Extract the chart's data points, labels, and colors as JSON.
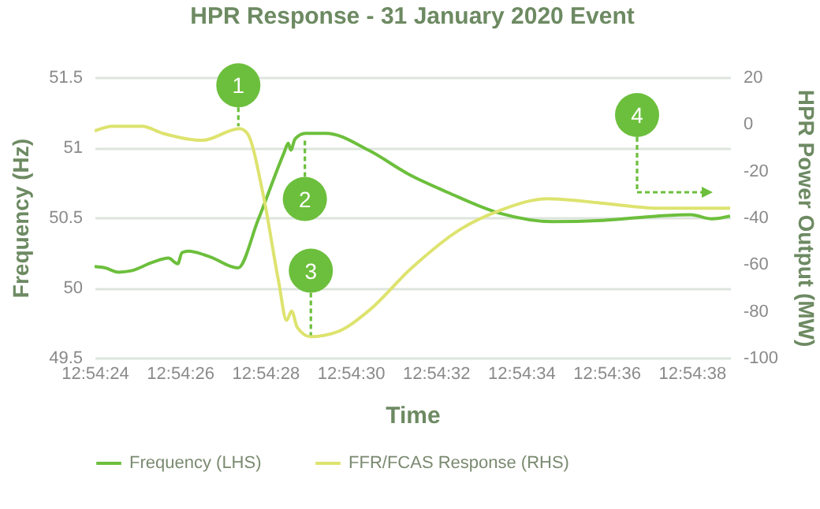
{
  "chart_data": {
    "type": "line",
    "title": "HPR Response - 31 January 2020 Event",
    "xlabel": "Time",
    "ylabel": "Frequency (Hz)",
    "y2label": "HPR Power Output (MW)",
    "xlim": [
      12.9066667,
      12.9108056
    ],
    "xticks": [
      {
        "value": 12.9066667,
        "label": "12:54:24"
      },
      {
        "value": 12.9072222,
        "label": "12:54:26"
      },
      {
        "value": 12.9077778,
        "label": "12:54:28"
      },
      {
        "value": 12.9083333,
        "label": "12:54:30"
      },
      {
        "value": 12.9088889,
        "label": "12:54:32"
      },
      {
        "value": 12.9094444,
        "label": "12:54:34"
      },
      {
        "value": 12.91,
        "label": "12:54:36"
      },
      {
        "value": 12.9105556,
        "label": "12:54:38"
      }
    ],
    "ylim": [
      49.5,
      51.5
    ],
    "yticks": [
      49.5,
      50,
      50.5,
      51,
      51.5
    ],
    "y2lim": [
      -100,
      20
    ],
    "y2ticks": [
      -100,
      -80,
      -60,
      -40,
      -20,
      0,
      20
    ],
    "grid": "y",
    "legend": "bottom",
    "series": [
      {
        "name": "Frequency (LHS)",
        "color": "#6cbf3c",
        "x": [
          12.9066667,
          12.9067361,
          12.9068222,
          12.9069056,
          12.9070444,
          12.9071472,
          12.9072083,
          12.9072361,
          12.9072778,
          12.9074167,
          12.9076,
          12.9077306,
          12.9079,
          12.9079278,
          12.9079444,
          12.9079722,
          12.9080389,
          12.908175,
          12.90845,
          12.908725,
          12.9089639,
          12.9093056,
          12.90965,
          12.9099917,
          12.9103333,
          12.91055,
          12.9106861,
          12.9108056
        ],
        "values": [
          50.15,
          50.14,
          50.11,
          50.12,
          50.18,
          50.21,
          50.17,
          50.25,
          50.26,
          50.22,
          50.14,
          50.48,
          50.96,
          51.03,
          50.98,
          51.06,
          51.1,
          51.1,
          50.98,
          50.8,
          50.68,
          50.53,
          50.47,
          50.48,
          50.51,
          50.52,
          50.49,
          50.51
        ]
      },
      {
        "name": "FFR/FCAS Response (RHS)",
        "color": "#dde36e",
        "axis": "y2",
        "x": [
          12.9066667,
          12.9067861,
          12.906975,
          12.9071111,
          12.9073694,
          12.9076111,
          12.9076611,
          12.9077639,
          12.9078667,
          12.9079167,
          12.90795,
          12.9079861,
          12.9080722,
          12.9082444,
          12.90845,
          12.908725,
          12.90905,
          12.9093056,
          12.9096167,
          12.9099917,
          12.9103333,
          12.9108056
        ],
        "values": [
          -3,
          -1,
          -1,
          -4,
          -7,
          -2,
          -4,
          -30,
          -68,
          -84,
          -80,
          -87,
          -91,
          -89,
          -80,
          -62,
          -45,
          -37,
          -32,
          -34,
          -36,
          -36
        ]
      }
    ],
    "annotations": [
      {
        "text": "1",
        "x": 12.9076028,
        "y": 51.15
      },
      {
        "text": "2",
        "x": 12.9080361,
        "y": 51.07
      },
      {
        "text": "3",
        "x": 12.908075,
        "y": 49.66
      },
      "4"
    ]
  }
}
